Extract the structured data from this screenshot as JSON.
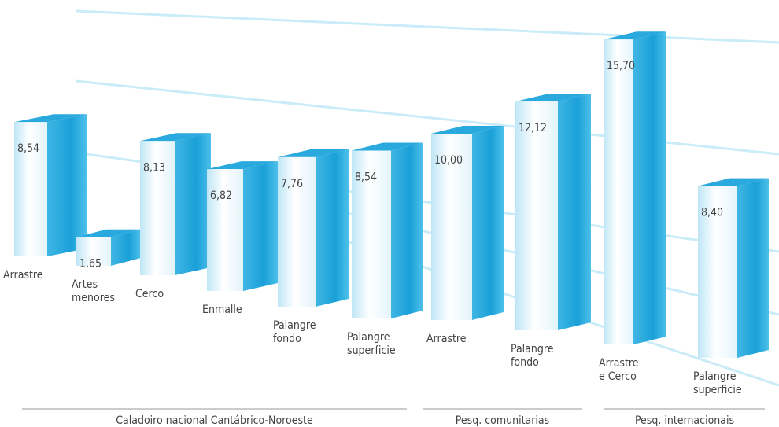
{
  "chart_data": {
    "type": "bar",
    "color": "#29a9dd",
    "groups": [
      {
        "name": "Caladoiro nacional Cantábrico-Noroeste",
        "categories": [
          "Arrastre",
          "Artes\nmenores",
          "Cerco",
          "Enmalle",
          "Palangre\nfondo",
          "Palangre\nsuperficie"
        ],
        "values": [
          8.54,
          1.65,
          8.13,
          6.82,
          7.76,
          8.54
        ],
        "value_labels": [
          "8,54",
          "1,65",
          "8,13",
          "6,82",
          "7,76",
          "8,54"
        ]
      },
      {
        "name": "Pesq. comunitarias",
        "categories": [
          "Arrastre",
          "Palangre\nfondo"
        ],
        "values": [
          10.0,
          12.12
        ],
        "value_labels": [
          "10,00",
          "12,12"
        ]
      },
      {
        "name": "Pesq. internacionais",
        "categories": [
          "Arrastre\ne Cerco",
          "Palangre\nsuperficie"
        ],
        "values": [
          15.7,
          8.4
        ],
        "value_labels": [
          "15,70",
          "8,40"
        ]
      }
    ]
  }
}
